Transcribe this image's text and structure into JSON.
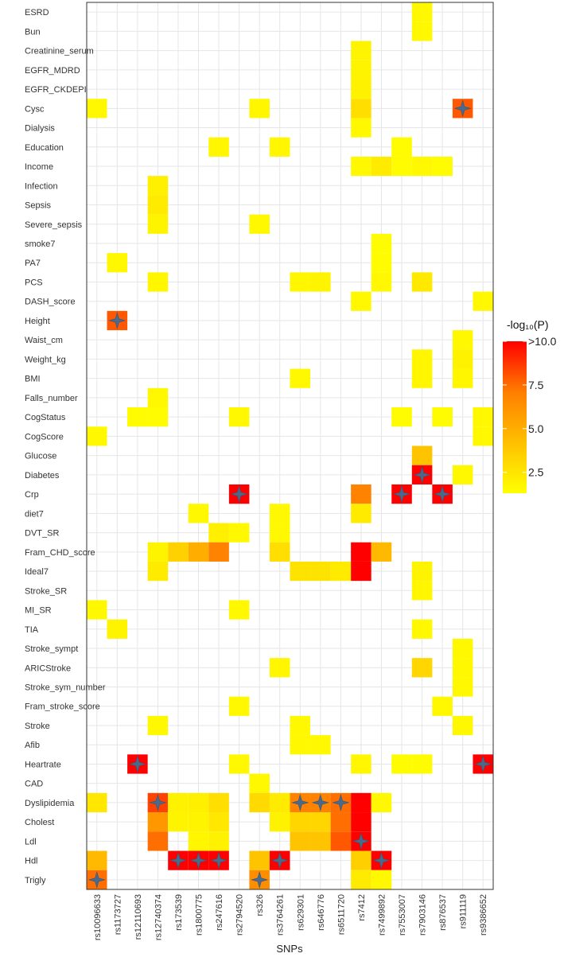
{
  "chart_data": {
    "type": "heatmap",
    "title": "",
    "xlabel": "SNPs",
    "ylabel": "",
    "grid": true,
    "legend": {
      "title": "-log₁₀(P)",
      "placement": "right",
      "ticks": [
        "2.5",
        "5.0",
        "7.5",
        ">10.0"
      ],
      "tick_values": [
        2.5,
        5.0,
        7.5,
        10.0
      ],
      "range": [
        1.3,
        10.0
      ],
      "colors": [
        "#ffff00",
        "#ffc000",
        "#ff8000",
        "#ff0000"
      ]
    },
    "x_categories": [
      "rs10096633",
      "rs1173727",
      "rs12110693",
      "rs12740374",
      "rs173539",
      "rs1800775",
      "rs247616",
      "rs2794520",
      "rs326",
      "rs3764261",
      "rs629301",
      "rs646776",
      "rs6511720",
      "rs7412",
      "rs7499892",
      "rs7553007",
      "rs7903146",
      "rs876537",
      "rs911119",
      "rs9386652"
    ],
    "y_categories": [
      "ESRD",
      "Bun",
      "Creatinine_serum",
      "EGFR_MDRD",
      "EGFR_CKDEPI",
      "Cysc",
      "Dialysis",
      "Education",
      "Income",
      "Infection",
      "Sepsis",
      "Severe_sepsis",
      "smoke7",
      "PA7",
      "PCS",
      "DASH_score",
      "Height",
      "Waist_cm",
      "Weight_kg",
      "BMI",
      "Falls_number",
      "CogStatus",
      "CogScore",
      "Glucose",
      "Diabetes",
      "Crp",
      "diet7",
      "DVT_SR",
      "Fram_CHD_score",
      "Ideal7",
      "Stroke_SR",
      "MI_SR",
      "TIA",
      "Stroke_sympt",
      "ARICStroke",
      "Stroke_sym_number",
      "Fram_stroke_score",
      "Stroke",
      "Afib",
      "Heartrate",
      "CAD",
      "Dyslipidemia",
      "Cholest",
      "Ldl",
      "Hdl",
      "Trigly"
    ],
    "cells": [
      [
        "rs7903146",
        "ESRD",
        1.6
      ],
      [
        "rs7903146",
        "Bun",
        1.6
      ],
      [
        "rs7412",
        "Creatinine_serum",
        1.8
      ],
      [
        "rs7412",
        "EGFR_MDRD",
        1.8
      ],
      [
        "rs7412",
        "EGFR_CKDEPI",
        1.9
      ],
      [
        "rs10096633",
        "Cysc",
        1.6
      ],
      [
        "rs326",
        "Cysc",
        1.7
      ],
      [
        "rs7412",
        "Cysc",
        2.8
      ],
      [
        "rs911119",
        "Cysc",
        8.0
      ],
      [
        "rs7412",
        "Dialysis",
        1.6
      ],
      [
        "rs247616",
        "Education",
        1.7
      ],
      [
        "rs3764261",
        "Education",
        1.7
      ],
      [
        "rs7553007",
        "Education",
        1.5
      ],
      [
        "rs7412",
        "Income",
        1.6
      ],
      [
        "rs7499892",
        "Income",
        2.2
      ],
      [
        "rs7903146",
        "Income",
        1.6
      ],
      [
        "rs876537",
        "Income",
        1.5
      ],
      [
        "rs7553007",
        "Income",
        1.5
      ],
      [
        "rs12740374",
        "Infection",
        2.0
      ],
      [
        "rs12740374",
        "Sepsis",
        2.2
      ],
      [
        "rs12740374",
        "Severe_sepsis",
        1.8
      ],
      [
        "rs326",
        "Severe_sepsis",
        1.6
      ],
      [
        "rs7499892",
        "smoke7",
        1.5
      ],
      [
        "rs1173727",
        "PA7",
        1.6
      ],
      [
        "rs7499892",
        "PA7",
        1.5
      ],
      [
        "rs12740374",
        "PCS",
        1.7
      ],
      [
        "rs629301",
        "PCS",
        1.7
      ],
      [
        "rs646776",
        "PCS",
        1.8
      ],
      [
        "rs7499892",
        "PCS",
        1.6
      ],
      [
        "rs7903146",
        "PCS",
        2.3
      ],
      [
        "rs7412",
        "DASH_score",
        1.6
      ],
      [
        "rs9386652",
        "DASH_score",
        1.6
      ],
      [
        "rs1173727",
        "Height",
        8.0
      ],
      [
        "rs911119",
        "Waist_cm",
        1.6
      ],
      [
        "rs7903146",
        "Weight_kg",
        1.7
      ],
      [
        "rs911119",
        "Weight_kg",
        1.9
      ],
      [
        "rs629301",
        "BMI",
        1.6
      ],
      [
        "rs7903146",
        "BMI",
        1.7
      ],
      [
        "rs911119",
        "BMI",
        1.7
      ],
      [
        "rs12740374",
        "Falls_number",
        1.6
      ],
      [
        "rs12110693",
        "CogStatus",
        1.5
      ],
      [
        "rs12740374",
        "CogStatus",
        1.5
      ],
      [
        "rs2794520",
        "CogStatus",
        1.6
      ],
      [
        "rs7553007",
        "CogStatus",
        1.5
      ],
      [
        "rs876537",
        "CogStatus",
        1.5
      ],
      [
        "rs9386652",
        "CogStatus",
        1.6
      ],
      [
        "rs10096633",
        "CogScore",
        1.6
      ],
      [
        "rs9386652",
        "CogScore",
        1.6
      ],
      [
        "rs7903146",
        "Glucose",
        4.0
      ],
      [
        "rs7903146",
        "Diabetes",
        10.5
      ],
      [
        "rs911119",
        "Diabetes",
        1.6
      ],
      [
        "rs2794520",
        "Crp",
        10.5
      ],
      [
        "rs7412",
        "Crp",
        7.0
      ],
      [
        "rs7553007",
        "Crp",
        10.5
      ],
      [
        "rs876537",
        "Crp",
        10.5
      ],
      [
        "rs1800775",
        "diet7",
        1.6
      ],
      [
        "rs3764261",
        "diet7",
        1.6
      ],
      [
        "rs7412",
        "diet7",
        2.2
      ],
      [
        "rs247616",
        "DVT_SR",
        2.0
      ],
      [
        "rs2794520",
        "DVT_SR",
        1.6
      ],
      [
        "rs3764261",
        "DVT_SR",
        1.6
      ],
      [
        "rs12740374",
        "Fram_CHD_score",
        1.8
      ],
      [
        "rs173539",
        "Fram_CHD_score",
        3.4
      ],
      [
        "rs1800775",
        "Fram_CHD_score",
        5.0
      ],
      [
        "rs247616",
        "Fram_CHD_score",
        7.0
      ],
      [
        "rs3764261",
        "Fram_CHD_score",
        2.8
      ],
      [
        "rs7412",
        "Fram_CHD_score",
        10.5
      ],
      [
        "rs7499892",
        "Fram_CHD_score",
        4.5
      ],
      [
        "rs12740374",
        "Ideal7",
        2.2
      ],
      [
        "rs629301",
        "Ideal7",
        2.6
      ],
      [
        "rs646776",
        "Ideal7",
        2.6
      ],
      [
        "rs6511720",
        "Ideal7",
        2.2
      ],
      [
        "rs7412",
        "Ideal7",
        10.5
      ],
      [
        "rs7903146",
        "Ideal7",
        1.8
      ],
      [
        "rs7903146",
        "Stroke_SR",
        1.7
      ],
      [
        "rs10096633",
        "MI_SR",
        1.6
      ],
      [
        "rs2794520",
        "MI_SR",
        1.6
      ],
      [
        "rs1173727",
        "TIA",
        1.8
      ],
      [
        "rs7903146",
        "TIA",
        1.6
      ],
      [
        "rs911119",
        "Stroke_sympt",
        1.6
      ],
      [
        "rs3764261",
        "ARICStroke",
        1.7
      ],
      [
        "rs7903146",
        "ARICStroke",
        3.2
      ],
      [
        "rs911119",
        "ARICStroke",
        1.6
      ],
      [
        "rs911119",
        "Stroke_sym_number",
        1.6
      ],
      [
        "rs2794520",
        "Fram_stroke_score",
        1.6
      ],
      [
        "rs876537",
        "Fram_stroke_score",
        1.6
      ],
      [
        "rs12740374",
        "Stroke",
        1.6
      ],
      [
        "rs629301",
        "Stroke",
        1.6
      ],
      [
        "rs911119",
        "Stroke",
        1.6
      ],
      [
        "rs629301",
        "Afib",
        1.6
      ],
      [
        "rs646776",
        "Afib",
        1.6
      ],
      [
        "rs12110693",
        "Heartrate",
        10.5
      ],
      [
        "rs2794520",
        "Heartrate",
        1.6
      ],
      [
        "rs7412",
        "Heartrate",
        1.7
      ],
      [
        "rs7553007",
        "Heartrate",
        1.5
      ],
      [
        "rs7903146",
        "Heartrate",
        1.5
      ],
      [
        "rs9386652",
        "Heartrate",
        10.5
      ],
      [
        "rs326",
        "CAD",
        1.6
      ],
      [
        "rs10096633",
        "Dyslipidemia",
        2.4
      ],
      [
        "rs12740374",
        "Dyslipidemia",
        8.5
      ],
      [
        "rs173539",
        "Dyslipidemia",
        1.9
      ],
      [
        "rs1800775",
        "Dyslipidemia",
        2.0
      ],
      [
        "rs247616",
        "Dyslipidemia",
        2.8
      ],
      [
        "rs326",
        "Dyslipidemia",
        3.0
      ],
      [
        "rs3764261",
        "Dyslipidemia",
        2.2
      ],
      [
        "rs629301",
        "Dyslipidemia",
        7.0
      ],
      [
        "rs646776",
        "Dyslipidemia",
        7.0
      ],
      [
        "rs6511720",
        "Dyslipidemia",
        7.5
      ],
      [
        "rs7412",
        "Dyslipidemia",
        10.5
      ],
      [
        "rs7499892",
        "Dyslipidemia",
        1.6
      ],
      [
        "rs12740374",
        "Cholest",
        6.0
      ],
      [
        "rs173539",
        "Cholest",
        1.8
      ],
      [
        "rs1800775",
        "Cholest",
        1.8
      ],
      [
        "rs247616",
        "Cholest",
        2.4
      ],
      [
        "rs3764261",
        "Cholest",
        1.9
      ],
      [
        "rs629301",
        "Cholest",
        3.2
      ],
      [
        "rs646776",
        "Cholest",
        3.2
      ],
      [
        "rs6511720",
        "Cholest",
        7.5
      ],
      [
        "rs7412",
        "Cholest",
        10.5
      ],
      [
        "rs12740374",
        "Ldl",
        7.5
      ],
      [
        "rs1800775",
        "Ldl",
        1.7
      ],
      [
        "rs247616",
        "Ldl",
        1.9
      ],
      [
        "rs629301",
        "Ldl",
        4.0
      ],
      [
        "rs646776",
        "Ldl",
        4.0
      ],
      [
        "rs6511720",
        "Ldl",
        8.0
      ],
      [
        "rs7412",
        "Ldl",
        10.5
      ],
      [
        "rs10096633",
        "Hdl",
        4.5
      ],
      [
        "rs173539",
        "Hdl",
        10.5
      ],
      [
        "rs1800775",
        "Hdl",
        10.5
      ],
      [
        "rs247616",
        "Hdl",
        10.5
      ],
      [
        "rs326",
        "Hdl",
        4.0
      ],
      [
        "rs3764261",
        "Hdl",
        10.5
      ],
      [
        "rs7412",
        "Hdl",
        3.5
      ],
      [
        "rs7499892",
        "Hdl",
        10.5
      ],
      [
        "rs10096633",
        "Trigly",
        7.5
      ],
      [
        "rs326",
        "Trigly",
        6.5
      ],
      [
        "rs7412",
        "Trigly",
        2.2
      ],
      [
        "rs7499892",
        "Trigly",
        1.6
      ]
    ],
    "significant": [
      [
        "rs911119",
        "Cysc"
      ],
      [
        "rs1173727",
        "Height"
      ],
      [
        "rs7903146",
        "Diabetes"
      ],
      [
        "rs2794520",
        "Crp"
      ],
      [
        "rs7553007",
        "Crp"
      ],
      [
        "rs876537",
        "Crp"
      ],
      [
        "rs12110693",
        "Heartrate"
      ],
      [
        "rs9386652",
        "Heartrate"
      ],
      [
        "rs12740374",
        "Dyslipidemia"
      ],
      [
        "rs629301",
        "Dyslipidemia"
      ],
      [
        "rs646776",
        "Dyslipidemia"
      ],
      [
        "rs6511720",
        "Dyslipidemia"
      ],
      [
        "rs7412",
        "Ldl"
      ],
      [
        "rs173539",
        "Hdl"
      ],
      [
        "rs1800775",
        "Hdl"
      ],
      [
        "rs247616",
        "Hdl"
      ],
      [
        "rs3764261",
        "Hdl"
      ],
      [
        "rs7499892",
        "Hdl"
      ],
      [
        "rs10096633",
        "Trigly"
      ],
      [
        "rs326",
        "Trigly"
      ]
    ],
    "marker_icon": "four-point-star-icon",
    "grid_color": "#e6e6e6",
    "background": "#ffffff"
  }
}
